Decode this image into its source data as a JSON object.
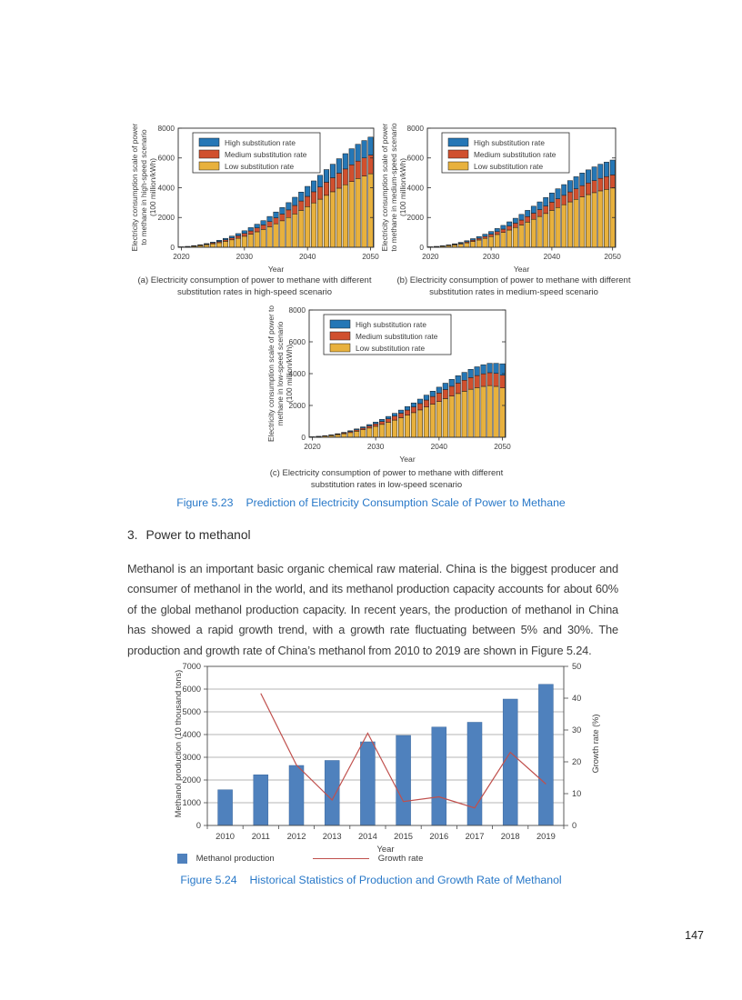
{
  "page": {
    "number": "147"
  },
  "figures": {
    "fig523": {
      "label": "Figure 5.23",
      "title": "Prediction of Electricity Consumption Scale of Power to Methane"
    },
    "fig524": {
      "label": "Figure 5.24",
      "title": "Historical Statistics of Production and Growth Rate of Methanol"
    }
  },
  "section": {
    "heading_number": "3.",
    "heading_text": "Power to methanol",
    "paragraph": "Methanol is an important basic organic chemical raw material. China is the biggest producer and consumer of methanol in the world, and its methanol production capacity accounts for about 60% of the global methanol production capacity. In recent years, the production of methanol in China has showed a rapid growth trend, with a growth rate fluctuating between 5% and 30%. The production and growth rate of China’s methanol from 2010 to 2019 are shown in Figure 5.24."
  },
  "chart_data": [
    {
      "id": "methane-high-speed",
      "type": "bar",
      "stacked": true,
      "caption": "(a) Electricity consumption of power to methane with different substitution rates in high-speed scenario",
      "xlabel": "Year",
      "ylabel_lines": [
        "Electricity consumption scale of power",
        "to methane in high-speed scenario",
        "(100 million/kWh)"
      ],
      "ylim": [
        0,
        8000
      ],
      "yticks": [
        0,
        2000,
        4000,
        6000,
        8000
      ],
      "xticks": [
        2020,
        2030,
        2040,
        2050
      ],
      "years": [
        2020,
        2021,
        2022,
        2023,
        2024,
        2025,
        2026,
        2027,
        2028,
        2029,
        2030,
        2031,
        2032,
        2033,
        2034,
        2035,
        2036,
        2037,
        2038,
        2039,
        2040,
        2041,
        2042,
        2043,
        2044,
        2045,
        2046,
        2047,
        2048,
        2049,
        2050
      ],
      "series": [
        {
          "name": "High substitution rate",
          "color": "#2577B6",
          "values": [
            5,
            10,
            20,
            30,
            40,
            60,
            80,
            100,
            120,
            150,
            180,
            220,
            250,
            290,
            340,
            390,
            440,
            490,
            550,
            600,
            670,
            730,
            790,
            850,
            910,
            970,
            1030,
            1080,
            1130,
            1170,
            1210
          ]
        },
        {
          "name": "Medium substitution rate",
          "color": "#D0502E",
          "values": [
            5,
            10,
            20,
            30,
            40,
            60,
            80,
            100,
            130,
            160,
            190,
            220,
            260,
            300,
            350,
            400,
            450,
            510,
            570,
            630,
            690,
            750,
            820,
            880,
            940,
            1010,
            1060,
            1120,
            1170,
            1210,
            1250
          ]
        },
        {
          "name": "Low substitution rate",
          "color": "#E8B13D",
          "values": [
            20,
            40,
            70,
            110,
            170,
            230,
            310,
            400,
            500,
            610,
            740,
            880,
            1040,
            1200,
            1380,
            1580,
            1780,
            2000,
            2240,
            2480,
            2730,
            2980,
            3230,
            3490,
            3730,
            3970,
            4200,
            4420,
            4620,
            4790,
            4940
          ]
        }
      ]
    },
    {
      "id": "methane-medium-speed",
      "type": "bar",
      "stacked": true,
      "caption": "(b) Electricity consumption of power to methane with different substitution rates in medium-speed scenario",
      "xlabel": "Year",
      "ylabel_lines": [
        "Electricity consumption scale of power",
        "to methane in medium-speed scenario",
        "(100 million/kWh)"
      ],
      "ylim": [
        0,
        8000
      ],
      "yticks": [
        0,
        2000,
        4000,
        6000,
        8000
      ],
      "xticks": [
        2020,
        2030,
        2040,
        2050
      ],
      "years": [
        2020,
        2021,
        2022,
        2023,
        2024,
        2025,
        2026,
        2027,
        2028,
        2029,
        2030,
        2031,
        2032,
        2033,
        2034,
        2035,
        2036,
        2037,
        2038,
        2039,
        2040,
        2041,
        2042,
        2043,
        2044,
        2045,
        2046,
        2047,
        2048,
        2049,
        2050
      ],
      "series": [
        {
          "name": "High substitution rate",
          "color": "#2577B6",
          "values": [
            5,
            10,
            15,
            30,
            40,
            60,
            70,
            100,
            120,
            150,
            180,
            210,
            250,
            290,
            330,
            380,
            420,
            470,
            520,
            570,
            620,
            670,
            720,
            760,
            810,
            850,
            880,
            920,
            950,
            970,
            1000
          ]
        },
        {
          "name": "Medium substitution rate",
          "color": "#D0502E",
          "values": [
            5,
            10,
            15,
            20,
            35,
            50,
            70,
            90,
            110,
            130,
            160,
            190,
            220,
            260,
            290,
            330,
            370,
            410,
            460,
            500,
            550,
            590,
            630,
            670,
            710,
            750,
            780,
            810,
            840,
            860,
            880
          ]
        },
        {
          "name": "Low substitution rate",
          "color": "#E8B13D",
          "values": [
            20,
            40,
            70,
            110,
            160,
            220,
            300,
            390,
            490,
            600,
            720,
            860,
            1000,
            1160,
            1330,
            1500,
            1690,
            1880,
            2070,
            2270,
            2480,
            2670,
            2860,
            3050,
            3220,
            3390,
            3540,
            3670,
            3790,
            3890,
            3980
          ]
        }
      ]
    },
    {
      "id": "methane-low-speed",
      "type": "bar",
      "stacked": true,
      "caption": "(c) Electricity consumption of power to methane with different substitution rates in low-speed scenario",
      "xlabel": "Year",
      "ylabel_lines": [
        "Electricity consumption scale of power to",
        "methane in low-speed scenario",
        "(100 million/kWh)"
      ],
      "ylim": [
        0,
        8000
      ],
      "yticks": [
        0,
        2000,
        4000,
        6000,
        8000
      ],
      "xticks": [
        2020,
        2030,
        2040,
        2050
      ],
      "years": [
        2020,
        2021,
        2022,
        2023,
        2024,
        2025,
        2026,
        2027,
        2028,
        2029,
        2030,
        2031,
        2032,
        2033,
        2034,
        2035,
        2036,
        2037,
        2038,
        2039,
        2040,
        2041,
        2042,
        2043,
        2044,
        2045,
        2046,
        2047,
        2048,
        2049,
        2050
      ],
      "series": [
        {
          "name": "High substitution rate",
          "color": "#2577B6",
          "values": [
            5,
            5,
            10,
            20,
            25,
            35,
            50,
            60,
            75,
            90,
            110,
            130,
            150,
            175,
            195,
            220,
            250,
            280,
            310,
            335,
            370,
            400,
            435,
            465,
            495,
            520,
            550,
            570,
            590,
            630,
            720
          ]
        },
        {
          "name": "Medium substitution rate",
          "color": "#D0502E",
          "values": [
            5,
            10,
            15,
            25,
            35,
            50,
            65,
            85,
            105,
            130,
            155,
            185,
            215,
            250,
            285,
            320,
            360,
            400,
            440,
            485,
            530,
            570,
            615,
            655,
            695,
            730,
            760,
            790,
            810,
            820,
            800
          ]
        },
        {
          "name": "Low substitution rate",
          "color": "#E8B13D",
          "values": [
            20,
            45,
            75,
            110,
            165,
            225,
            295,
            380,
            475,
            580,
            690,
            810,
            945,
            1080,
            1230,
            1390,
            1550,
            1720,
            1900,
            2080,
            2250,
            2430,
            2590,
            2750,
            2890,
            3020,
            3120,
            3200,
            3250,
            3200,
            3100
          ]
        }
      ]
    },
    {
      "id": "methanol-production",
      "type": "bar+line",
      "caption_label": "Figure 5.24",
      "caption": "Historical Statistics of Production and Growth Rate of Methanol",
      "xlabel": "Year",
      "ylabel": "Methanol production (10 thousand tons)",
      "y2label": "Growth rate (%)",
      "ylim": [
        0,
        7000
      ],
      "yticks": [
        0,
        1000,
        2000,
        3000,
        4000,
        5000,
        6000,
        7000
      ],
      "y2lim": [
        0,
        50
      ],
      "y2ticks": [
        0,
        10,
        20,
        30,
        40,
        50
      ],
      "grid": true,
      "categories": [
        2010,
        2011,
        2012,
        2013,
        2014,
        2015,
        2016,
        2017,
        2018,
        2019
      ],
      "bar_series": {
        "name": "Methanol production",
        "color": "#4F81BD",
        "values": [
          1570,
          2230,
          2640,
          2860,
          3680,
          3960,
          4330,
          4540,
          5560,
          6210
        ]
      },
      "line_series": {
        "name": "Growth rate",
        "color": "#C0504D",
        "values": [
          null,
          41.5,
          19,
          8,
          29,
          7.5,
          9,
          5.5,
          23,
          13
        ]
      }
    }
  ]
}
